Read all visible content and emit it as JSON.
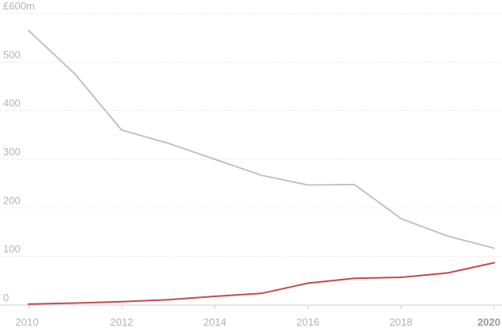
{
  "chart_data": {
    "type": "line",
    "title": "",
    "xlabel": "",
    "ylabel": "",
    "x": [
      2010,
      2011,
      2012,
      2013,
      2014,
      2015,
      2016,
      2017,
      2018,
      2019,
      2020
    ],
    "xlim": [
      2010,
      2020
    ],
    "ylim": [
      0,
      600
    ],
    "y_ticks": [
      {
        "value": 0,
        "label": "0"
      },
      {
        "value": 100,
        "label": "100"
      },
      {
        "value": 200,
        "label": "200"
      },
      {
        "value": 300,
        "label": "300"
      },
      {
        "value": 400,
        "label": "400"
      },
      {
        "value": 500,
        "label": "500"
      },
      {
        "value": 600,
        "label": "£600m"
      }
    ],
    "x_ticks": [
      {
        "value": 2010,
        "label": "2010",
        "bold": false
      },
      {
        "value": 2012,
        "label": "2012",
        "bold": false
      },
      {
        "value": 2014,
        "label": "2014",
        "bold": false
      },
      {
        "value": 2016,
        "label": "2016",
        "bold": false
      },
      {
        "value": 2018,
        "label": "2018",
        "bold": false
      },
      {
        "value": 2020,
        "label": "2020",
        "bold": true
      }
    ],
    "grid": true,
    "series": [
      {
        "name": "grey-series",
        "color": "#c2c2c2",
        "values": [
          565,
          475,
          360,
          333,
          300,
          267,
          247,
          248,
          178,
          142,
          117
        ]
      },
      {
        "name": "red-series",
        "color": "#c7484e",
        "values": [
          2,
          4,
          7,
          11,
          18,
          24,
          45,
          55,
          57,
          66,
          87
        ]
      }
    ]
  }
}
